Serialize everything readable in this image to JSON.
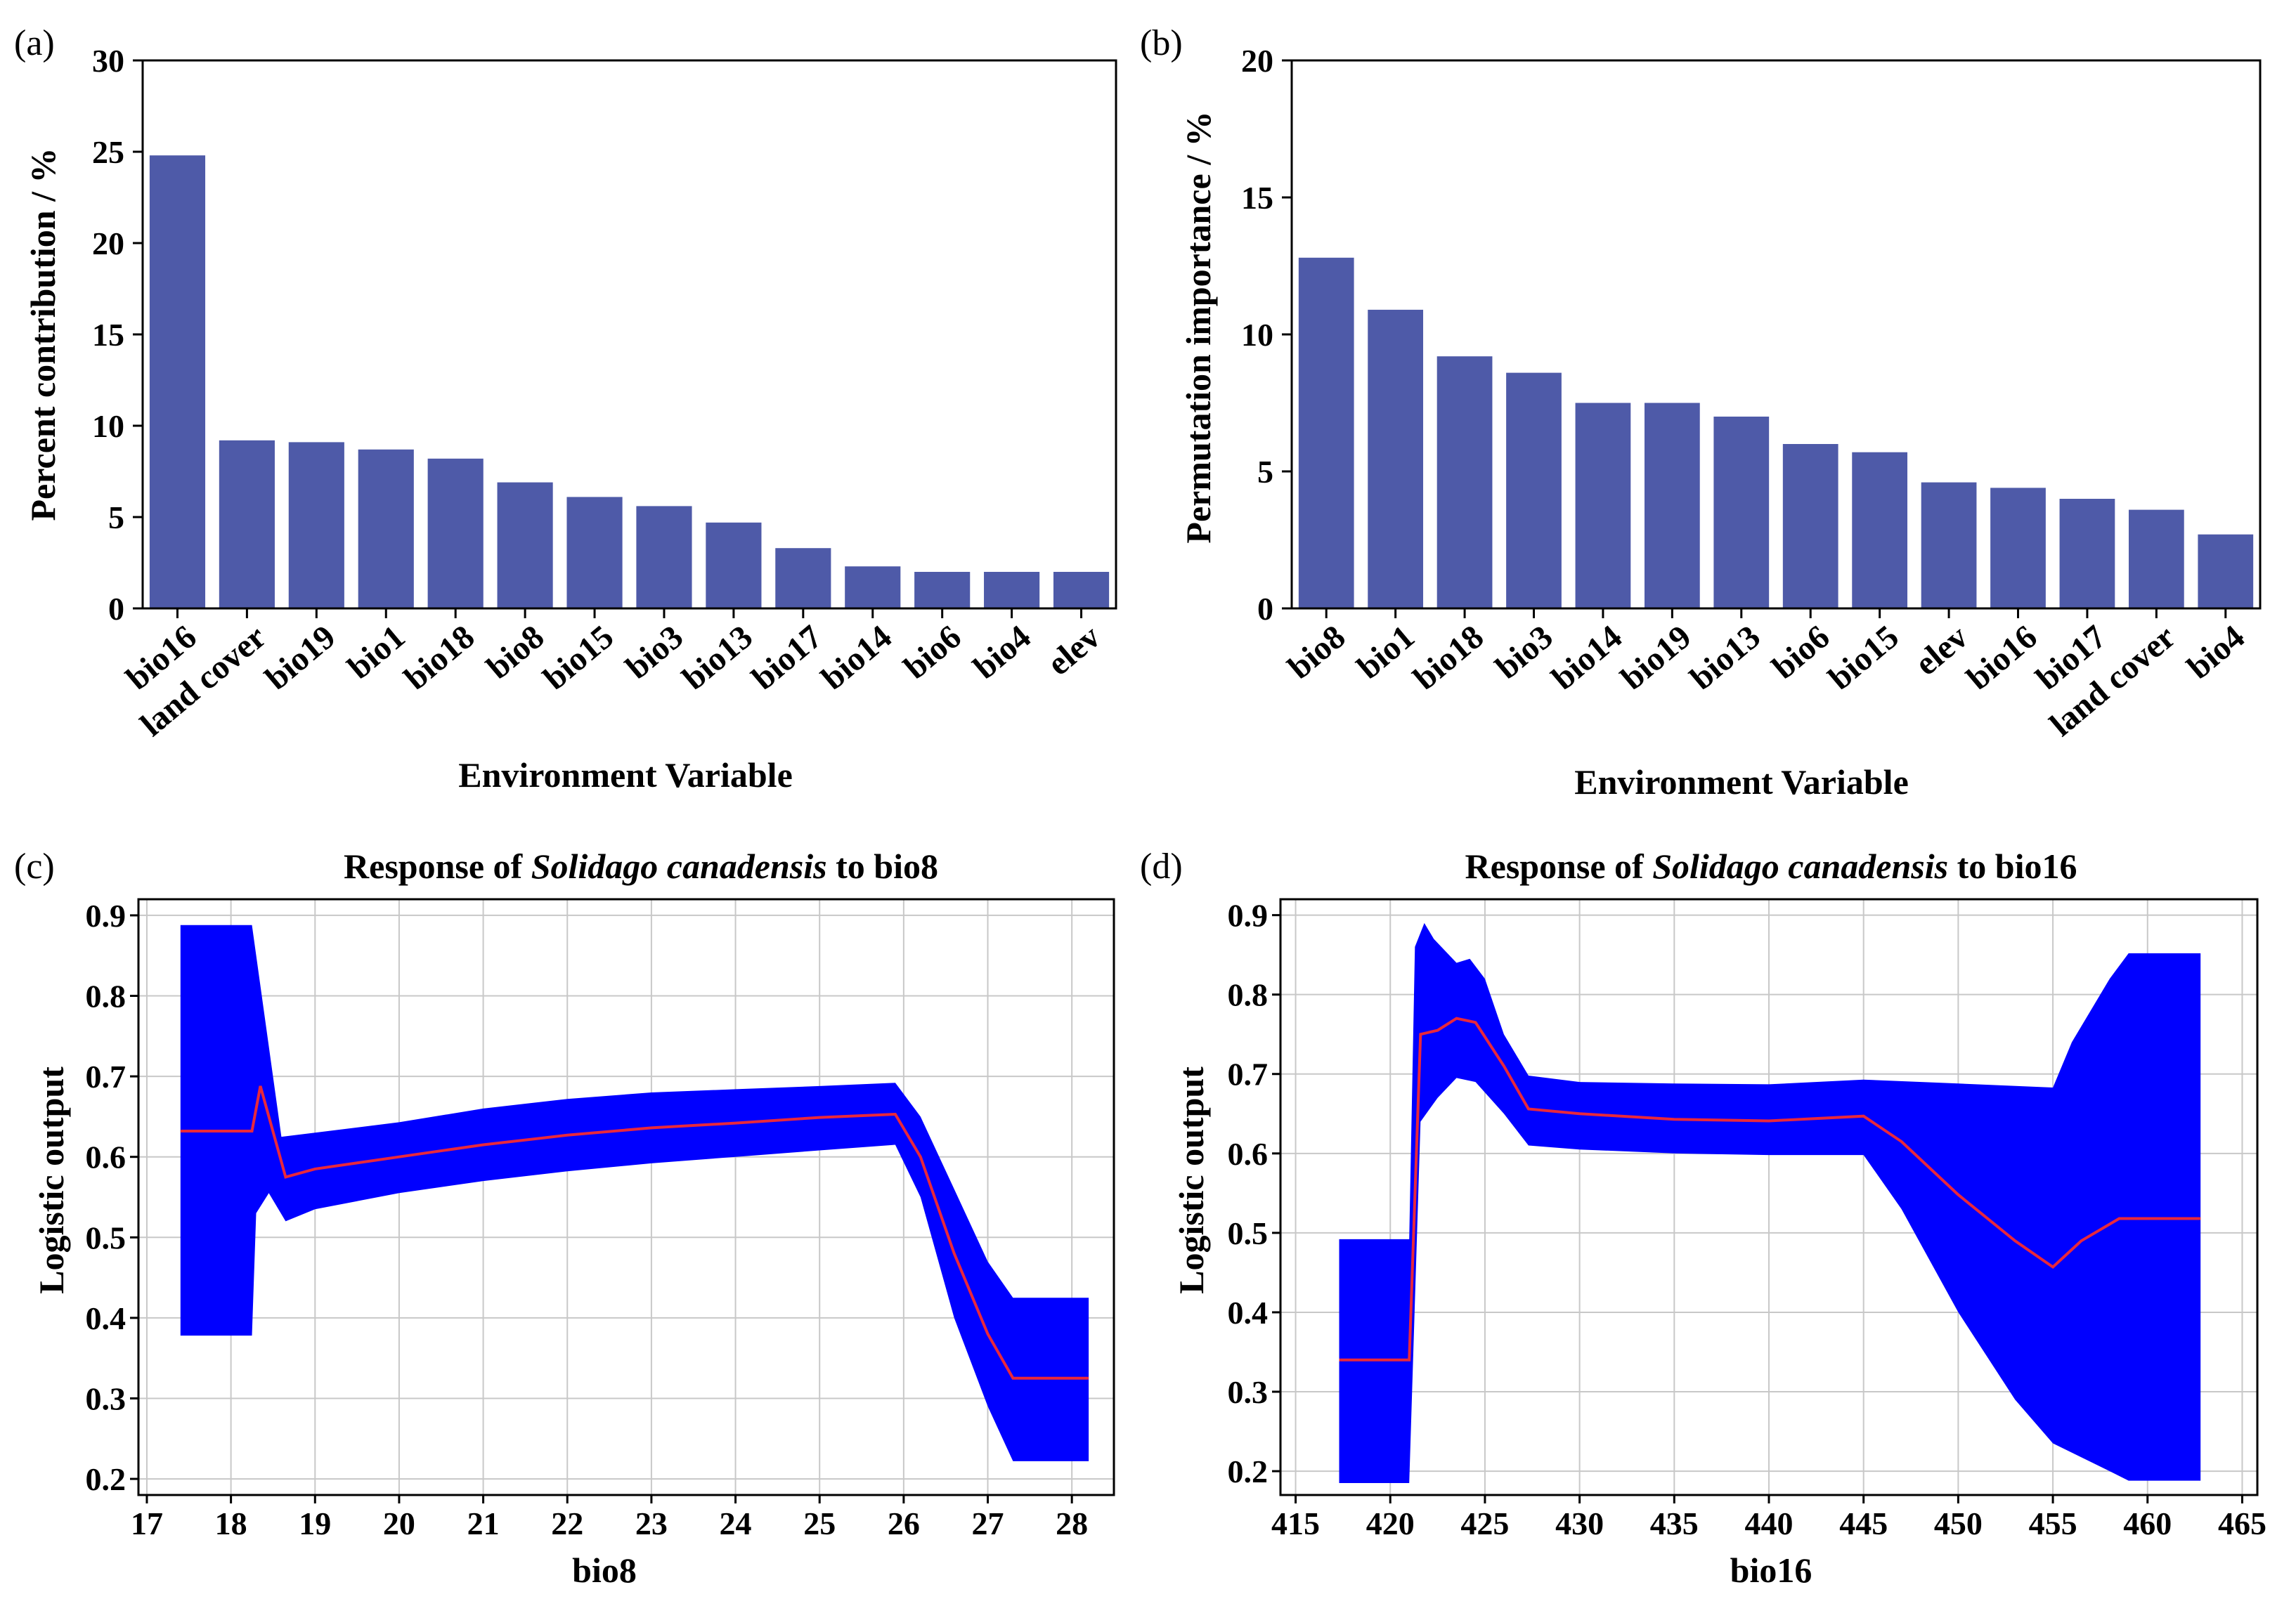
{
  "colors": {
    "bar": "#4e5aa8",
    "band": "#0000ff",
    "mean": "#e8283c"
  },
  "chart_data": [
    {
      "id": "a",
      "panel_label": "(a)",
      "type": "bar",
      "title": "",
      "xlabel": "Environment Variable",
      "ylabel": "Percent contribution / %",
      "ylim": [
        0,
        30
      ],
      "yticks": [
        "0",
        "5",
        "10",
        "15",
        "20",
        "25",
        "30"
      ],
      "categories": [
        "bio16",
        "land cover",
        "bio19",
        "bio1",
        "bio18",
        "bio8",
        "bio15",
        "bio3",
        "bio13",
        "bio17",
        "bio14",
        "bio6",
        "bio4",
        "elev"
      ],
      "values": [
        24.8,
        9.2,
        9.1,
        8.7,
        8.2,
        6.9,
        6.1,
        5.6,
        4.7,
        3.3,
        2.3,
        2.0,
        2.0,
        2.0
      ]
    },
    {
      "id": "b",
      "panel_label": "(b)",
      "type": "bar",
      "title": "",
      "xlabel": "Environment Variable",
      "ylabel": "Permutation importance / %",
      "ylim": [
        0,
        20
      ],
      "yticks": [
        "0",
        "5",
        "10",
        "15",
        "20"
      ],
      "categories": [
        "bio8",
        "bio1",
        "bio18",
        "bio3",
        "bio14",
        "bio19",
        "bio13",
        "bio6",
        "bio15",
        "elev",
        "bio16",
        "bio17",
        "land cover",
        "bio4"
      ],
      "values": [
        12.8,
        10.9,
        9.2,
        8.6,
        7.5,
        7.5,
        7.0,
        6.0,
        5.7,
        4.6,
        4.4,
        4.0,
        3.6,
        2.7
      ]
    },
    {
      "id": "c",
      "panel_label": "(c)",
      "type": "line",
      "title_pre": "Response of ",
      "title_species": "Solidago canadensis",
      "title_post": " to bio8",
      "xlabel": "bio8",
      "ylabel": "Logistic output",
      "xlim": [
        16.9,
        28.5
      ],
      "ylim": [
        0.18,
        0.92
      ],
      "xticks": [
        "17",
        "18",
        "19",
        "20",
        "21",
        "22",
        "23",
        "24",
        "25",
        "26",
        "27",
        "28"
      ],
      "yticks": [
        "0.2",
        "0.3",
        "0.4",
        "0.5",
        "0.6",
        "0.7",
        "0.8",
        "0.9"
      ],
      "series": [
        {
          "name": "mean",
          "points": [
            [
              17.4,
              0.632
            ],
            [
              18.25,
              0.632
            ],
            [
              18.35,
              0.688
            ],
            [
              18.65,
              0.575
            ],
            [
              19,
              0.585
            ],
            [
              20,
              0.6
            ],
            [
              21,
              0.615
            ],
            [
              22,
              0.627
            ],
            [
              23,
              0.636
            ],
            [
              24,
              0.642
            ],
            [
              25,
              0.649
            ],
            [
              25.9,
              0.653
            ],
            [
              26.2,
              0.6
            ],
            [
              26.6,
              0.48
            ],
            [
              27.0,
              0.38
            ],
            [
              27.3,
              0.325
            ],
            [
              28.2,
              0.325
            ]
          ]
        },
        {
          "name": "upper",
          "points": [
            [
              17.4,
              0.888
            ],
            [
              18.25,
              0.888
            ],
            [
              18.6,
              0.625
            ],
            [
              19,
              0.63
            ],
            [
              20,
              0.643
            ],
            [
              21,
              0.66
            ],
            [
              22,
              0.672
            ],
            [
              23,
              0.68
            ],
            [
              24,
              0.684
            ],
            [
              25,
              0.688
            ],
            [
              25.9,
              0.692
            ],
            [
              26.2,
              0.65
            ],
            [
              26.6,
              0.56
            ],
            [
              27.0,
              0.47
            ],
            [
              27.3,
              0.425
            ],
            [
              28.2,
              0.425
            ]
          ]
        },
        {
          "name": "lower",
          "points": [
            [
              17.4,
              0.378
            ],
            [
              18.25,
              0.378
            ],
            [
              18.3,
              0.53
            ],
            [
              18.45,
              0.555
            ],
            [
              18.65,
              0.52
            ],
            [
              19,
              0.535
            ],
            [
              20,
              0.555
            ],
            [
              21,
              0.57
            ],
            [
              22,
              0.582
            ],
            [
              23,
              0.592
            ],
            [
              24,
              0.6
            ],
            [
              25,
              0.608
            ],
            [
              25.9,
              0.615
            ],
            [
              26.2,
              0.55
            ],
            [
              26.6,
              0.4
            ],
            [
              27.0,
              0.29
            ],
            [
              27.3,
              0.222
            ],
            [
              28.2,
              0.222
            ]
          ]
        }
      ]
    },
    {
      "id": "d",
      "panel_label": "(d)",
      "type": "line",
      "title_pre": "Response of ",
      "title_species": "Solidago canadensis",
      "title_post": " to bio16",
      "xlabel": "bio16",
      "ylabel": "Logistic output",
      "xlim": [
        414.2,
        465.8
      ],
      "ylim": [
        0.17,
        0.92
      ],
      "xticks": [
        "415",
        "420",
        "425",
        "430",
        "435",
        "440",
        "445",
        "450",
        "455",
        "460",
        "465"
      ],
      "yticks": [
        "0.2",
        "0.3",
        "0.4",
        "0.5",
        "0.6",
        "0.7",
        "0.8",
        "0.9"
      ],
      "series": [
        {
          "name": "mean",
          "points": [
            [
              417.3,
              0.34
            ],
            [
              421.0,
              0.34
            ],
            [
              421.6,
              0.75
            ],
            [
              422.5,
              0.755
            ],
            [
              423.5,
              0.77
            ],
            [
              424.5,
              0.765
            ],
            [
              426,
              0.71
            ],
            [
              427.3,
              0.656
            ],
            [
              430,
              0.65
            ],
            [
              435,
              0.643
            ],
            [
              440,
              0.641
            ],
            [
              445,
              0.647
            ],
            [
              447,
              0.615
            ],
            [
              450,
              0.548
            ],
            [
              453,
              0.49
            ],
            [
              455,
              0.457
            ],
            [
              456.5,
              0.49
            ],
            [
              458.5,
              0.518
            ],
            [
              462.8,
              0.518
            ]
          ]
        },
        {
          "name": "upper",
          "points": [
            [
              417.3,
              0.492
            ],
            [
              421.0,
              0.492
            ],
            [
              421.3,
              0.86
            ],
            [
              421.8,
              0.89
            ],
            [
              422.3,
              0.87
            ],
            [
              423.5,
              0.84
            ],
            [
              424.2,
              0.845
            ],
            [
              425,
              0.82
            ],
            [
              426,
              0.75
            ],
            [
              427.3,
              0.698
            ],
            [
              430,
              0.69
            ],
            [
              435,
              0.688
            ],
            [
              440,
              0.687
            ],
            [
              445,
              0.693
            ],
            [
              450,
              0.688
            ],
            [
              455,
              0.683
            ],
            [
              456,
              0.74
            ],
            [
              458,
              0.82
            ],
            [
              459,
              0.852
            ],
            [
              462.8,
              0.852
            ]
          ]
        },
        {
          "name": "lower",
          "points": [
            [
              417.3,
              0.185
            ],
            [
              421.0,
              0.185
            ],
            [
              421.6,
              0.64
            ],
            [
              422.5,
              0.67
            ],
            [
              423.5,
              0.695
            ],
            [
              424.5,
              0.69
            ],
            [
              426,
              0.65
            ],
            [
              427.3,
              0.61
            ],
            [
              430,
              0.605
            ],
            [
              435,
              0.6
            ],
            [
              440,
              0.598
            ],
            [
              445,
              0.598
            ],
            [
              447,
              0.53
            ],
            [
              450,
              0.4
            ],
            [
              453,
              0.29
            ],
            [
              455,
              0.235
            ],
            [
              458,
              0.2
            ],
            [
              459,
              0.188
            ],
            [
              462.8,
              0.188
            ]
          ]
        }
      ]
    }
  ]
}
